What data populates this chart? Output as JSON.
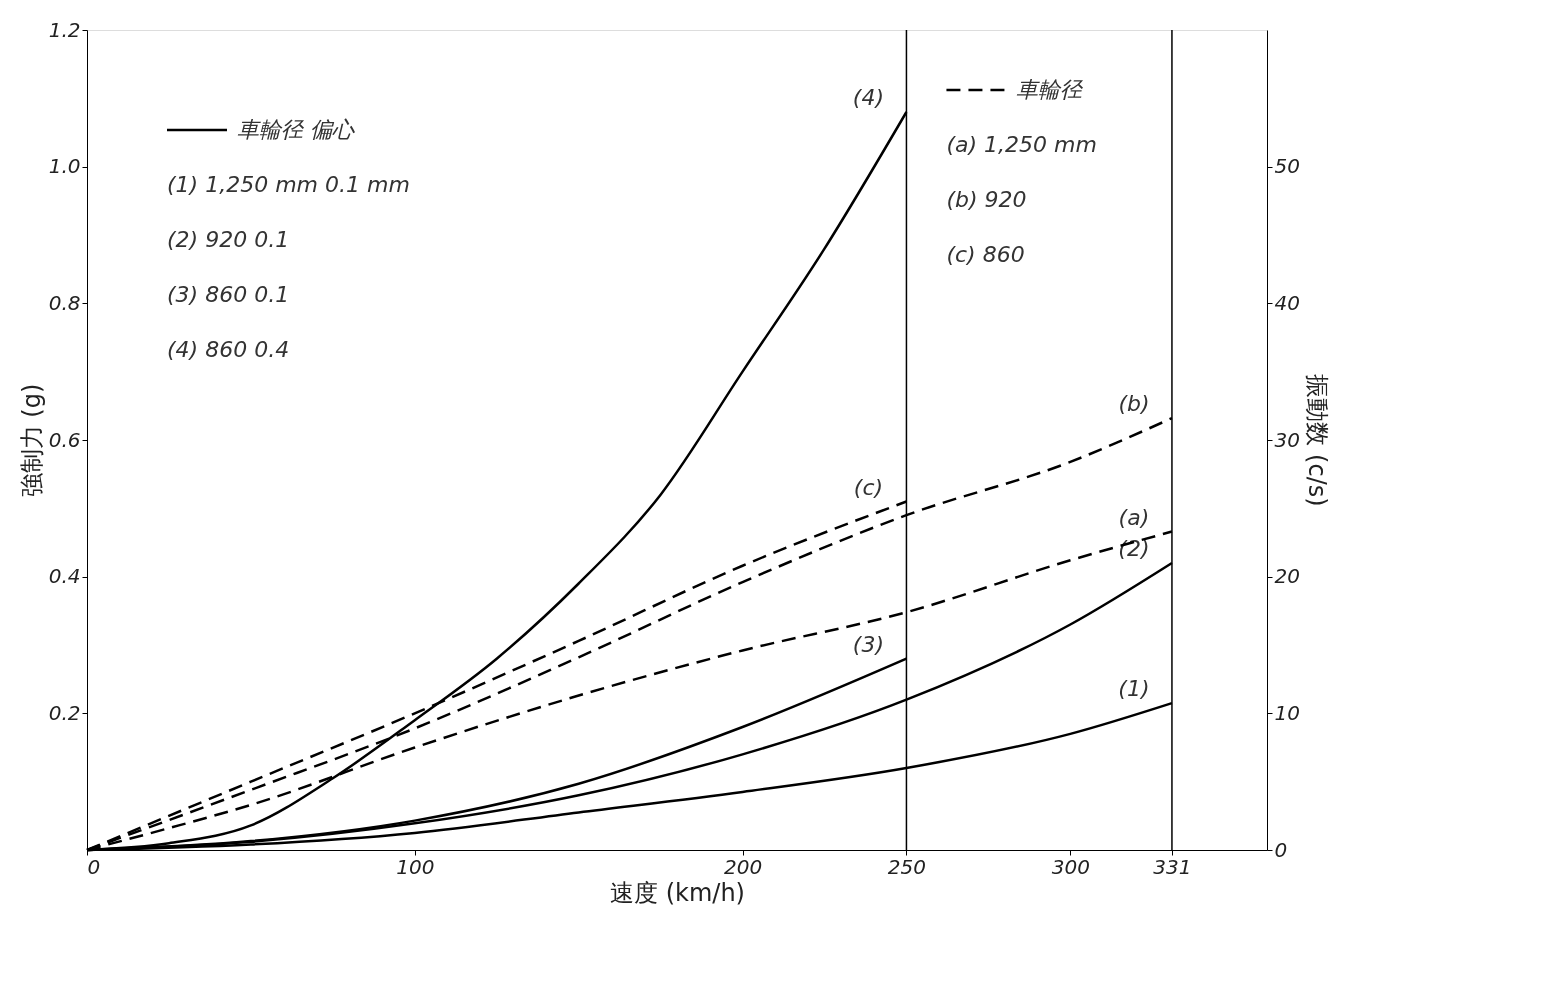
{
  "chart_data": {
    "type": "line",
    "xlabel": "速度 (km/h)",
    "ylabel": "強制力 (g)",
    "y2label": "振動数 (c/s)",
    "xlim": [
      0,
      360
    ],
    "xticks": [
      0,
      100,
      200,
      250,
      300,
      331
    ],
    "ylim": [
      0,
      1.2
    ],
    "yticks": [
      0.2,
      0.4,
      0.6,
      0.8,
      {
        "value": 1,
        "label": "1.0"
      },
      1.2
    ],
    "y2lim": [
      0,
      60
    ],
    "y2ticks": [
      0,
      10,
      20,
      30,
      40,
      50
    ],
    "grid": false,
    "marker": "none",
    "ref_lines": [
      {
        "axis": "x",
        "value": 250,
        "color": "#000000"
      },
      {
        "axis": "x",
        "value": 331,
        "color": "#000000"
      }
    ],
    "annotations": [
      "車輪径 偏心",
      "(1) 1,250 mm 0.1 mm",
      "(2) 920 0.1",
      "(3) 860 0.1",
      "(4) 860 0.4",
      "車輪径",
      "(a) 1,250 mm",
      "(b) 920",
      "(c) 860"
    ],
    "series": [
      {
        "name": "(1)",
        "color": "#000000",
        "line_style": "solid",
        "x": [
          0,
          50,
          100,
          150,
          200,
          250,
          300,
          331
        ],
        "values": [
          0,
          0.008,
          0.025,
          0.055,
          0.085,
          0.12,
          0.17,
          0.215
        ]
      },
      {
        "name": "(2)",
        "color": "#000000",
        "line_style": "solid",
        "x": [
          0,
          50,
          100,
          150,
          200,
          250,
          300,
          331
        ],
        "values": [
          0,
          0.012,
          0.039,
          0.08,
          0.14,
          0.22,
          0.33,
          0.42
        ]
      },
      {
        "name": "(3)",
        "color": "#000000",
        "line_style": "solid",
        "x": [
          0,
          50,
          100,
          150,
          200,
          250
        ],
        "values": [
          0,
          0.013,
          0.043,
          0.097,
          0.18,
          0.28
        ]
      },
      {
        "name": "(4)",
        "color": "#000000",
        "line_style": "solid",
        "x": [
          0,
          25,
          50,
          75,
          100,
          125,
          150,
          175,
          200,
          225,
          250
        ],
        "values": [
          0,
          0.01,
          0.036,
          0.105,
          0.19,
          0.28,
          0.39,
          0.52,
          0.7,
          0.88,
          1.08
        ]
      },
      {
        "name": "(a)",
        "color": "#000000",
        "line_style": "dashed",
        "axis": "y2",
        "x": [
          0,
          25,
          50,
          100,
          150,
          200,
          250,
          300,
          331
        ],
        "values": [
          0,
          1.6,
          3.3,
          7.5,
          11.3,
          14.6,
          17.4,
          21.2,
          23.3
        ]
      },
      {
        "name": "(b)",
        "color": "#000000",
        "line_style": "dashed",
        "axis": "y2",
        "x": [
          0,
          50,
          100,
          150,
          200,
          250,
          300,
          331
        ],
        "values": [
          0,
          4.4,
          8.9,
          14.1,
          19.6,
          24.5,
          28.4,
          31.6
        ]
      },
      {
        "name": "(c)",
        "color": "#000000",
        "line_style": "dashed",
        "axis": "y2",
        "x": [
          0,
          50,
          100,
          150,
          200,
          250
        ],
        "values": [
          0,
          5.0,
          10.0,
          15.3,
          20.8,
          25.5
        ]
      }
    ]
  }
}
